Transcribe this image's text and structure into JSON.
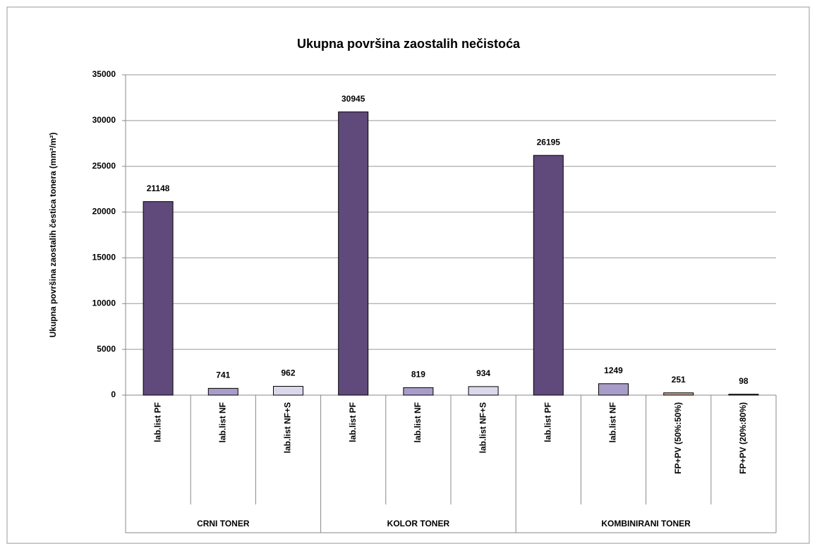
{
  "chart_data": {
    "type": "bar",
    "title": "Ukupna površina zaostalih nečistoća",
    "y_label": "Ukupna površina zaostalih čestica tonera (mm²/m²)",
    "groups": [
      {
        "name": "CRNI TONER",
        "categories": [
          "lab.list PF",
          "lab.list NF",
          "lab.list NF+S"
        ],
        "values": [
          21148,
          741,
          962
        ],
        "colors": [
          "#5f4a7b",
          "#a89cc8",
          "#dcd8ec"
        ]
      },
      {
        "name": "KOLOR TONER",
        "categories": [
          "lab.list PF",
          "lab.list NF",
          "lab.list NF+S"
        ],
        "values": [
          30945,
          819,
          934
        ],
        "colors": [
          "#5f4a7b",
          "#a89cc8",
          "#dcd8ec"
        ]
      },
      {
        "name": "KOMBINIRANI TONER",
        "categories": [
          "lab.list PF",
          "lab.list NF",
          "FP+PV (50%:50%)",
          "FP+PV (20%:80%)"
        ],
        "values": [
          26195,
          1249,
          251,
          98
        ],
        "colors": [
          "#5f4a7b",
          "#a89cc8",
          "#c8a090",
          "#4a4060"
        ]
      }
    ],
    "ylim": [
      0,
      35000
    ],
    "yticks": [
      0,
      5000,
      10000,
      15000,
      20000,
      25000,
      30000,
      35000
    ],
    "grid": true
  }
}
